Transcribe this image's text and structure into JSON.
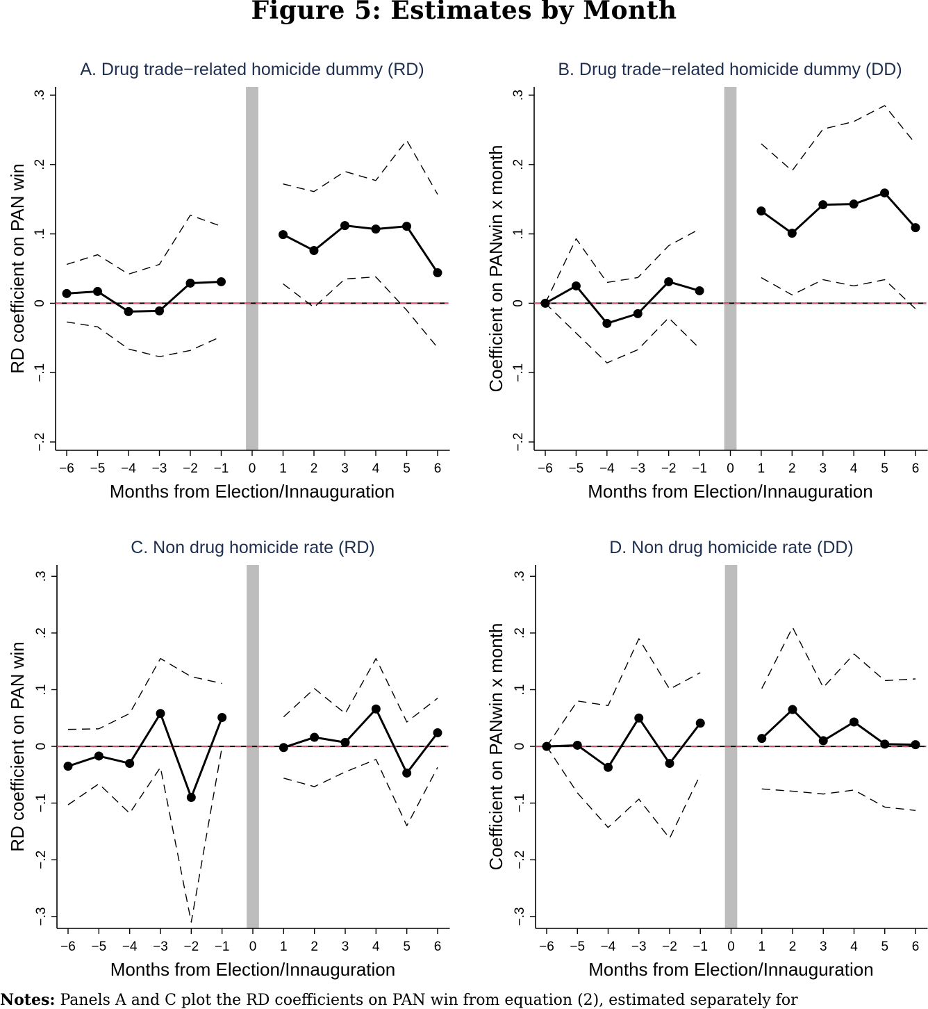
{
  "figure": {
    "title": "Figure 5: Estimates by Month",
    "notes_label": "Notes:",
    "notes_text": "Panels A and C plot the RD coefficients on PAN win from equation (2), estimated separately for"
  },
  "chart_data": [
    {
      "type": "line",
      "panel": "A",
      "title": "A. Drug trade−related homicide dummy (RD)",
      "xlabel": "Months from Election/Innauguration",
      "ylabel": "RD coefficient on PAN win",
      "x_ticks": [
        "−6",
        "−5",
        "−4",
        "−3",
        "−2",
        "−1",
        "0",
        "1",
        "2",
        "3",
        "4",
        "5",
        "6"
      ],
      "x_tick_values": [
        -6,
        -5,
        -4,
        -3,
        -2,
        -1,
        0,
        1,
        2,
        3,
        4,
        5,
        6
      ],
      "y_ticks": [
        "−.2",
        "−.1",
        "0",
        ".1",
        ".2",
        ".3"
      ],
      "y_tick_values": [
        -0.2,
        -0.1,
        0,
        0.1,
        0.2,
        0.3
      ],
      "xlim": [
        -6.35,
        6.35
      ],
      "ylim": [
        -0.212,
        0.312
      ],
      "shaded_band": [
        -0.2,
        0.2
      ],
      "zero_line": 0,
      "series": [
        {
          "name": "estimate",
          "style": "solid-markers",
          "x": [
            -6,
            -5,
            -4,
            -3,
            -2,
            -1,
            1,
            2,
            3,
            4,
            5,
            6
          ],
          "values": [
            0.014,
            0.017,
            -0.012,
            -0.011,
            0.029,
            0.031,
            0.099,
            0.076,
            0.112,
            0.107,
            0.111,
            0.044
          ]
        },
        {
          "name": "upper 95% CI",
          "style": "dashed",
          "x": [
            -6,
            -5,
            -4,
            -3,
            -2,
            -1,
            1,
            2,
            3,
            4,
            5,
            6
          ],
          "values": [
            0.056,
            0.07,
            0.042,
            0.056,
            0.127,
            0.111,
            0.172,
            0.161,
            0.19,
            0.177,
            0.235,
            0.157
          ]
        },
        {
          "name": "lower 95% CI",
          "style": "dashed",
          "x": [
            -6,
            -5,
            -4,
            -3,
            -2,
            -1,
            1,
            2,
            3,
            4,
            5,
            6
          ],
          "values": [
            -0.027,
            -0.034,
            -0.066,
            -0.077,
            -0.068,
            -0.048,
            0.028,
            -0.006,
            0.035,
            0.038,
            -0.01,
            -0.064
          ]
        }
      ]
    },
    {
      "type": "line",
      "panel": "B",
      "title": "B. Drug trade−related homicide dummy (DD)",
      "xlabel": "Months from Election/Innauguration",
      "ylabel": "Coefficient on PANwin x month",
      "x_ticks": [
        "−6",
        "−5",
        "−4",
        "−3",
        "−2",
        "−1",
        "0",
        "1",
        "2",
        "3",
        "4",
        "5",
        "6"
      ],
      "x_tick_values": [
        -6,
        -5,
        -4,
        -3,
        -2,
        -1,
        0,
        1,
        2,
        3,
        4,
        5,
        6
      ],
      "y_ticks": [
        "−.2",
        "−.1",
        "0",
        ".1",
        ".2",
        ".3"
      ],
      "y_tick_values": [
        -0.2,
        -0.1,
        0,
        0.1,
        0.2,
        0.3
      ],
      "xlim": [
        -6.35,
        6.35
      ],
      "ylim": [
        -0.212,
        0.312
      ],
      "shaded_band": [
        -0.2,
        0.2
      ],
      "zero_line": 0,
      "series": [
        {
          "name": "estimate",
          "style": "solid-markers",
          "x": [
            -6,
            -5,
            -4,
            -3,
            -2,
            -1,
            1,
            2,
            3,
            4,
            5,
            6
          ],
          "values": [
            0.0,
            0.025,
            -0.029,
            -0.015,
            0.031,
            0.018,
            0.133,
            0.101,
            0.142,
            0.143,
            0.159,
            0.109
          ]
        },
        {
          "name": "upper 95% CI",
          "style": "dashed",
          "x": [
            -6,
            -5,
            -4,
            -3,
            -2,
            -1,
            1,
            2,
            3,
            4,
            5,
            6
          ],
          "values": [
            0.0,
            0.093,
            0.03,
            0.037,
            0.083,
            0.107,
            0.23,
            0.191,
            0.251,
            0.262,
            0.285,
            0.23
          ]
        },
        {
          "name": "lower 95% CI",
          "style": "dashed",
          "x": [
            -6,
            -5,
            -4,
            -3,
            -2,
            -1,
            1,
            2,
            3,
            4,
            5,
            6
          ],
          "values": [
            0.0,
            -0.043,
            -0.086,
            -0.067,
            -0.021,
            -0.065,
            0.037,
            0.012,
            0.034,
            0.025,
            0.034,
            -0.008
          ]
        }
      ]
    },
    {
      "type": "line",
      "panel": "C",
      "title": "C. Non drug homicide rate (RD)",
      "xlabel": "Months from Election/Innauguration",
      "ylabel": "RD coefficient on PAN win",
      "x_ticks": [
        "−6",
        "−5",
        "−4",
        "−3",
        "−2",
        "−1",
        "0",
        "1",
        "2",
        "3",
        "4",
        "5",
        "6"
      ],
      "x_tick_values": [
        -6,
        -5,
        -4,
        -3,
        -2,
        -1,
        0,
        1,
        2,
        3,
        4,
        5,
        6
      ],
      "y_ticks": [
        "−.3",
        "−.2",
        "−.1",
        "0",
        ".1",
        ".2",
        ".3"
      ],
      "y_tick_values": [
        -0.3,
        -0.2,
        -0.1,
        0,
        0.1,
        0.2,
        0.3
      ],
      "xlim": [
        -6.35,
        6.35
      ],
      "ylim": [
        -0.321,
        0.32
      ],
      "shaded_band": [
        -0.2,
        0.2
      ],
      "zero_line": 0,
      "series": [
        {
          "name": "estimate",
          "style": "solid-markers",
          "x": [
            -6,
            -5,
            -4,
            -3,
            -2,
            -1,
            1,
            2,
            3,
            4,
            5,
            6
          ],
          "values": [
            -0.035,
            -0.017,
            -0.03,
            0.058,
            -0.09,
            0.051,
            -0.002,
            0.016,
            0.007,
            0.066,
            -0.047,
            0.024
          ]
        },
        {
          "name": "upper 95% CI",
          "style": "dashed",
          "x": [
            -6,
            -5,
            -4,
            -3,
            -2,
            -1,
            1,
            2,
            3,
            4,
            5,
            6
          ],
          "values": [
            0.03,
            0.031,
            0.058,
            0.155,
            0.123,
            0.111,
            0.052,
            0.102,
            0.058,
            0.155,
            0.043,
            0.085
          ]
        },
        {
          "name": "lower 95% CI",
          "style": "dashed",
          "x": [
            -6,
            -5,
            -4,
            -3,
            -2,
            -1,
            1,
            2,
            3,
            4,
            5,
            6
          ],
          "values": [
            -0.103,
            -0.066,
            -0.118,
            -0.037,
            -0.31,
            -0.001,
            -0.056,
            -0.071,
            -0.045,
            -0.023,
            -0.14,
            -0.037
          ]
        }
      ]
    },
    {
      "type": "line",
      "panel": "D",
      "title": "D. Non drug homicide rate (DD)",
      "xlabel": "Months from Election/Innauguration",
      "ylabel": "Coefficient on PANwin x month",
      "x_ticks": [
        "−6",
        "−5",
        "−4",
        "−3",
        "−2",
        "−1",
        "0",
        "1",
        "2",
        "3",
        "4",
        "5",
        "6"
      ],
      "x_tick_values": [
        -6,
        -5,
        -4,
        -3,
        -2,
        -1,
        0,
        1,
        2,
        3,
        4,
        5,
        6
      ],
      "y_ticks": [
        "−.3",
        "−.2",
        "−.1",
        "0",
        ".1",
        ".2",
        ".3"
      ],
      "y_tick_values": [
        -0.3,
        -0.2,
        -0.1,
        0,
        0.1,
        0.2,
        0.3
      ],
      "xlim": [
        -6.35,
        6.35
      ],
      "ylim": [
        -0.321,
        0.32
      ],
      "shaded_band": [
        -0.2,
        0.2
      ],
      "zero_line": 0,
      "series": [
        {
          "name": "estimate",
          "style": "solid-markers",
          "x": [
            -6,
            -5,
            -4,
            -3,
            -2,
            -1,
            1,
            2,
            3,
            4,
            5,
            6
          ],
          "values": [
            0.0,
            0.002,
            -0.037,
            0.05,
            -0.03,
            0.041,
            0.014,
            0.065,
            0.01,
            0.043,
            0.004,
            0.003
          ]
        },
        {
          "name": "upper 95% CI",
          "style": "dashed",
          "x": [
            -6,
            -5,
            -4,
            -3,
            -2,
            -1,
            1,
            2,
            3,
            4,
            5,
            6
          ],
          "values": [
            0.0,
            0.08,
            0.072,
            0.19,
            0.101,
            0.13,
            0.102,
            0.21,
            0.104,
            0.163,
            0.116,
            0.119
          ]
        },
        {
          "name": "lower 95% CI",
          "style": "dashed",
          "x": [
            -6,
            -5,
            -4,
            -3,
            -2,
            -1,
            1,
            2,
            3,
            4,
            5,
            6
          ],
          "values": [
            0.0,
            -0.082,
            -0.143,
            -0.093,
            -0.162,
            -0.05,
            -0.075,
            -0.079,
            -0.084,
            -0.077,
            -0.107,
            -0.113
          ]
        }
      ]
    }
  ],
  "colors": {
    "title_text": "#1f2f4f",
    "band": "#bdbdbd",
    "zero_line": "#000000",
    "zero_highlight": "#e0607a",
    "series": "#000000"
  }
}
